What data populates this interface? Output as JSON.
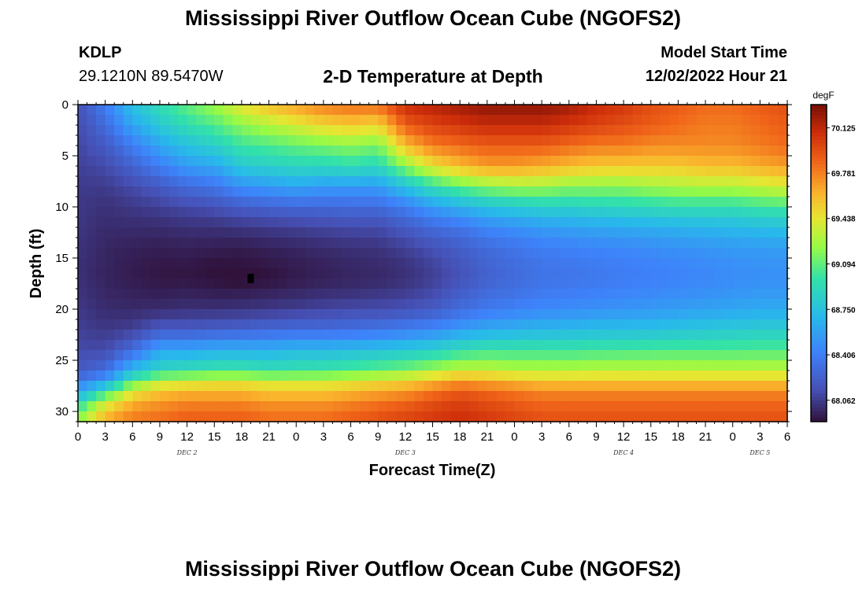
{
  "header": {
    "title": "Mississippi River Outflow Ocean Cube (NGOFS2)",
    "station_id": "KDLP",
    "station_coords": "29.1210N  89.5470W",
    "panel_title": "2-D Temperature at Depth",
    "model_start_label": "Model Start Time",
    "model_start_value": "12/02/2022 Hour 21"
  },
  "footer": {
    "title": "Mississippi River Outflow Ocean Cube (NGOFS2)"
  },
  "chart_data": {
    "type": "heatmap",
    "title": "2-D Temperature at Depth",
    "xlabel": "Forecast Time(Z)",
    "ylabel": "Depth (ft)",
    "x_range_hours": [
      0,
      78
    ],
    "x_tick_labels": [
      "0",
      "3",
      "6",
      "9",
      "12",
      "15",
      "18",
      "21",
      "0",
      "3",
      "6",
      "9",
      "12",
      "15",
      "18",
      "21",
      "0",
      "3",
      "6",
      "9",
      "12",
      "15",
      "18",
      "21",
      "0",
      "3",
      "6"
    ],
    "day_labels": [
      {
        "hour": 12,
        "label": "DEC 2"
      },
      {
        "hour": 36,
        "label": "DEC 3"
      },
      {
        "hour": 60,
        "label": "DEC 4"
      },
      {
        "hour": 75,
        "label": "DEC 5"
      }
    ],
    "y_range_ft": [
      0,
      31
    ],
    "y_reversed": true,
    "y_ticks": [
      0,
      5,
      10,
      15,
      20,
      25,
      30
    ],
    "colorbar": {
      "unit": "degF",
      "vmin": 67.9,
      "vmax": 70.3,
      "labels": [
        70.125,
        69.781,
        69.438,
        69.094,
        68.75,
        68.406,
        68.062
      ]
    },
    "depth_profiles_degF": {
      "depths_ft": [
        0,
        2,
        4,
        6,
        8,
        10,
        12,
        14,
        16,
        17,
        18,
        20,
        22,
        24,
        26,
        27,
        28,
        29,
        30,
        31
      ],
      "profiles": [
        {
          "hour": 0,
          "values": [
            68.15,
            68.12,
            68.1,
            68.08,
            68.06,
            68.05,
            68.04,
            68.03,
            68.02,
            68.02,
            68.03,
            68.05,
            68.08,
            68.12,
            68.2,
            68.35,
            68.6,
            68.85,
            69.1,
            69.2
          ]
        },
        {
          "hour": 3,
          "values": [
            68.4,
            68.3,
            68.2,
            68.12,
            68.06,
            68.02,
            68.0,
            67.98,
            67.97,
            67.97,
            67.98,
            68.0,
            68.05,
            68.12,
            68.3,
            68.55,
            68.95,
            69.3,
            69.55,
            69.65
          ]
        },
        {
          "hour": 6,
          "values": [
            68.75,
            68.6,
            68.4,
            68.25,
            68.12,
            68.05,
            68.0,
            67.96,
            67.94,
            67.94,
            67.96,
            67.99,
            68.08,
            68.3,
            68.7,
            69.05,
            69.4,
            69.6,
            69.75,
            69.8
          ]
        },
        {
          "hour": 9,
          "values": [
            68.95,
            68.8,
            68.6,
            68.4,
            68.2,
            68.08,
            68.0,
            67.95,
            67.92,
            67.92,
            67.94,
            68.0,
            68.2,
            68.6,
            68.9,
            69.3,
            69.55,
            69.7,
            69.8,
            69.85
          ]
        },
        {
          "hour": 12,
          "values": [
            69.1,
            68.95,
            68.75,
            68.55,
            68.3,
            68.12,
            68.02,
            67.96,
            67.92,
            67.92,
            67.95,
            68.02,
            68.2,
            68.6,
            68.95,
            69.35,
            69.6,
            69.75,
            69.85,
            69.9
          ]
        },
        {
          "hour": 15,
          "values": [
            69.25,
            69.05,
            68.85,
            68.6,
            68.35,
            68.15,
            68.02,
            67.95,
            67.9,
            67.9,
            67.93,
            68.02,
            68.22,
            68.65,
            69.0,
            69.4,
            69.6,
            69.75,
            69.85,
            69.9
          ]
        },
        {
          "hour": 18,
          "values": [
            69.45,
            69.2,
            69.0,
            68.8,
            68.5,
            68.22,
            68.04,
            67.94,
            67.9,
            67.88,
            67.93,
            68.03,
            68.25,
            68.65,
            69.0,
            69.4,
            69.6,
            69.75,
            69.85,
            69.9
          ]
        },
        {
          "hour": 21,
          "values": [
            69.6,
            69.3,
            69.05,
            68.85,
            68.55,
            68.25,
            68.06,
            67.96,
            67.92,
            67.9,
            67.95,
            68.05,
            68.28,
            68.65,
            68.95,
            69.35,
            69.55,
            69.7,
            69.8,
            69.85
          ]
        },
        {
          "hour": 24,
          "values": [
            69.7,
            69.4,
            69.1,
            68.9,
            68.6,
            68.28,
            68.08,
            67.98,
            67.94,
            67.94,
            67.97,
            68.07,
            68.3,
            68.7,
            68.98,
            69.35,
            69.55,
            69.7,
            69.8,
            69.85
          ]
        },
        {
          "hour": 27,
          "values": [
            69.8,
            69.5,
            69.15,
            68.9,
            68.55,
            68.28,
            68.1,
            68.0,
            67.96,
            67.96,
            67.99,
            68.1,
            68.3,
            68.7,
            69.0,
            69.35,
            69.55,
            69.7,
            69.8,
            69.85
          ]
        },
        {
          "hour": 30,
          "values": [
            69.85,
            69.55,
            69.2,
            68.95,
            68.55,
            68.3,
            68.12,
            68.02,
            67.98,
            67.98,
            68.0,
            68.12,
            68.32,
            68.72,
            69.05,
            69.4,
            69.6,
            69.75,
            69.85,
            69.9
          ]
        },
        {
          "hour": 33,
          "values": [
            69.85,
            69.5,
            69.15,
            68.9,
            68.55,
            68.3,
            68.12,
            68.03,
            67.99,
            67.99,
            68.02,
            68.13,
            68.35,
            68.75,
            69.1,
            69.45,
            69.65,
            69.8,
            69.9,
            69.95
          ]
        },
        {
          "hour": 36,
          "values": [
            70.1,
            69.9,
            69.6,
            69.2,
            68.75,
            68.4,
            68.2,
            68.08,
            68.02,
            68.02,
            68.05,
            68.15,
            68.4,
            68.8,
            69.15,
            69.5,
            69.7,
            69.85,
            69.95,
            70.0
          ]
        },
        {
          "hour": 39,
          "values": [
            70.15,
            70.0,
            69.8,
            69.45,
            68.95,
            68.55,
            68.3,
            68.15,
            68.08,
            68.08,
            68.1,
            68.2,
            68.45,
            68.85,
            69.25,
            69.6,
            69.8,
            69.95,
            70.0,
            70.05
          ]
        },
        {
          "hour": 42,
          "values": [
            70.2,
            70.05,
            69.85,
            69.6,
            69.1,
            68.65,
            68.35,
            68.22,
            68.16,
            68.16,
            68.2,
            68.3,
            68.55,
            68.95,
            69.35,
            69.7,
            69.9,
            70.0,
            70.05,
            70.1
          ]
        },
        {
          "hour": 45,
          "values": [
            70.25,
            70.1,
            69.9,
            69.7,
            69.2,
            68.75,
            68.45,
            68.3,
            68.25,
            68.25,
            68.28,
            68.38,
            68.62,
            69.0,
            69.35,
            69.65,
            69.85,
            69.95,
            70.0,
            70.05
          ]
        },
        {
          "hour": 48,
          "values": [
            70.25,
            70.1,
            69.9,
            69.7,
            69.25,
            68.8,
            68.5,
            68.35,
            68.3,
            68.3,
            68.32,
            68.42,
            68.65,
            69.0,
            69.3,
            69.6,
            69.8,
            69.9,
            69.95,
            70.0
          ]
        },
        {
          "hour": 51,
          "values": [
            70.25,
            70.1,
            69.9,
            69.65,
            69.25,
            68.85,
            68.55,
            68.4,
            68.35,
            68.35,
            68.37,
            68.46,
            68.68,
            69.0,
            69.3,
            69.55,
            69.75,
            69.85,
            69.9,
            69.95
          ]
        },
        {
          "hour": 54,
          "values": [
            70.2,
            70.05,
            69.85,
            69.6,
            69.2,
            68.85,
            68.58,
            68.42,
            68.36,
            68.36,
            68.38,
            68.48,
            68.7,
            69.0,
            69.3,
            69.55,
            69.75,
            69.85,
            69.9,
            69.95
          ]
        },
        {
          "hour": 57,
          "values": [
            70.1,
            70.0,
            69.8,
            69.55,
            69.2,
            68.88,
            68.6,
            68.44,
            68.38,
            68.38,
            68.4,
            68.5,
            68.72,
            69.02,
            69.32,
            69.55,
            69.75,
            69.85,
            69.9,
            69.95
          ]
        },
        {
          "hour": 60,
          "values": [
            70.05,
            69.95,
            69.8,
            69.55,
            69.2,
            68.9,
            68.62,
            68.46,
            68.4,
            68.4,
            68.42,
            68.52,
            68.72,
            69.03,
            69.32,
            69.55,
            69.75,
            69.85,
            69.9,
            69.95
          ]
        },
        {
          "hour": 63,
          "values": [
            69.95,
            69.9,
            69.75,
            69.55,
            69.25,
            68.92,
            68.64,
            68.48,
            68.42,
            68.42,
            68.44,
            68.54,
            68.74,
            69.04,
            69.32,
            69.55,
            69.75,
            69.85,
            69.9,
            69.95
          ]
        },
        {
          "hour": 66,
          "values": [
            69.9,
            69.85,
            69.75,
            69.55,
            69.28,
            68.95,
            68.66,
            68.5,
            68.44,
            68.44,
            68.46,
            68.56,
            68.76,
            69.05,
            69.32,
            69.55,
            69.75,
            69.85,
            69.9,
            69.95
          ]
        },
        {
          "hour": 69,
          "values": [
            69.85,
            69.8,
            69.75,
            69.6,
            69.3,
            68.95,
            68.68,
            68.52,
            68.46,
            68.46,
            68.48,
            68.58,
            68.78,
            69.05,
            69.32,
            69.55,
            69.75,
            69.85,
            69.9,
            69.95
          ]
        },
        {
          "hour": 72,
          "values": [
            69.85,
            69.8,
            69.75,
            69.6,
            69.3,
            68.95,
            68.7,
            68.54,
            68.48,
            68.48,
            68.5,
            68.6,
            68.8,
            69.05,
            69.32,
            69.55,
            69.75,
            69.85,
            69.9,
            69.95
          ]
        },
        {
          "hour": 75,
          "values": [
            69.9,
            69.85,
            69.8,
            69.65,
            69.35,
            69.0,
            68.72,
            68.55,
            68.5,
            68.5,
            68.52,
            68.62,
            68.82,
            69.06,
            69.32,
            69.55,
            69.75,
            69.85,
            69.9,
            69.95
          ]
        },
        {
          "hour": 78,
          "values": [
            69.95,
            69.9,
            69.85,
            69.7,
            69.4,
            69.02,
            68.74,
            68.56,
            68.5,
            68.5,
            68.52,
            68.62,
            68.82,
            69.06,
            69.32,
            69.55,
            69.75,
            69.85,
            69.9,
            69.95
          ]
        }
      ]
    },
    "marker": {
      "hour": 19,
      "depth_ft": 17,
      "shape": "square",
      "color": "#000000"
    }
  }
}
